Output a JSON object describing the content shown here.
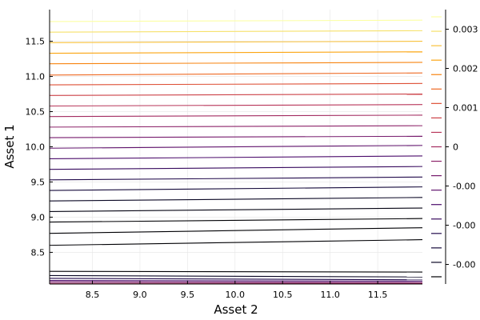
{
  "chart_data": {
    "type": "contour",
    "xlabel": "Asset 2",
    "ylabel": "Asset 1",
    "xlim": [
      8.05,
      11.97
    ],
    "ylim": [
      8.05,
      11.95
    ],
    "xticks": [
      "8.5",
      "9.0",
      "9.5",
      "10.0",
      "10.5",
      "11.0",
      "11.5"
    ],
    "yticks": [
      "8.5",
      "9.0",
      "9.5",
      "10.0",
      "10.5",
      "11.0",
      "11.5"
    ],
    "grid": true,
    "colormap": "inferno",
    "colorbar": {
      "range": [
        -0.0035,
        0.0035
      ],
      "tick_labels": [
        "0.003",
        "0.002",
        "0.001",
        "0",
        "-0.00",
        "-0.00",
        "-0.00"
      ],
      "tick_values": [
        0.003,
        0.002,
        0.001,
        0.0,
        -0.001,
        -0.002,
        -0.003
      ]
    },
    "contour_levels": [
      {
        "y_left": 11.78,
        "y_right": 11.8,
        "color": "#fcffa4"
      },
      {
        "y_left": 11.63,
        "y_right": 11.65,
        "color": "#f6e16a"
      },
      {
        "y_left": 11.48,
        "y_right": 11.5,
        "color": "#f9c23c"
      },
      {
        "y_left": 11.33,
        "y_right": 11.35,
        "color": "#fba512"
      },
      {
        "y_left": 11.18,
        "y_right": 11.2,
        "color": "#f78410"
      },
      {
        "y_left": 11.02,
        "y_right": 11.05,
        "color": "#ee6a24"
      },
      {
        "y_left": 10.88,
        "y_right": 10.9,
        "color": "#de5036"
      },
      {
        "y_left": 10.73,
        "y_right": 10.75,
        "color": "#cc4248"
      },
      {
        "y_left": 10.58,
        "y_right": 10.6,
        "color": "#b8365a"
      },
      {
        "y_left": 10.43,
        "y_right": 10.45,
        "color": "#a32c61"
      },
      {
        "y_left": 10.28,
        "y_right": 10.3,
        "color": "#8c2369"
      },
      {
        "y_left": 10.13,
        "y_right": 10.15,
        "color": "#761b6d"
      },
      {
        "y_left": 9.98,
        "y_right": 10.02,
        "color": "#62146e"
      },
      {
        "y_left": 9.83,
        "y_right": 9.87,
        "color": "#4b0c6b"
      },
      {
        "y_left": 9.68,
        "y_right": 9.72,
        "color": "#370a5e"
      },
      {
        "y_left": 9.53,
        "y_right": 9.57,
        "color": "#220b4c"
      },
      {
        "y_left": 9.38,
        "y_right": 9.43,
        "color": "#14093a"
      },
      {
        "y_left": 9.23,
        "y_right": 9.28,
        "color": "#0a0724"
      },
      {
        "y_left": 9.08,
        "y_right": 9.13,
        "color": "#040312"
      },
      {
        "y_left": 8.93,
        "y_right": 8.98,
        "color": "#000004"
      },
      {
        "y_left": 8.77,
        "y_right": 8.85,
        "color": "#000004"
      },
      {
        "y_left": 8.6,
        "y_right": 8.68,
        "color": "#000004"
      },
      {
        "y_left": 8.23,
        "y_right": 8.22,
        "color": "#000004"
      },
      {
        "y_left": 8.17,
        "y_right": 8.15,
        "color": "#0a0724"
      },
      {
        "y_left": 8.13,
        "y_right": 8.11,
        "color": "#220b4c"
      },
      {
        "y_left": 8.1,
        "y_right": 8.09,
        "color": "#4b0c6b"
      },
      {
        "y_left": 8.08,
        "y_right": 8.07,
        "color": "#761b6d"
      },
      {
        "y_left": 8.06,
        "y_right": 8.06,
        "color": "#a32c61"
      }
    ],
    "colorbar_level_colors": [
      "#000004",
      "#0a0724",
      "#14093a",
      "#220b4c",
      "#370a5e",
      "#4b0c6b",
      "#62146e",
      "#761b6d",
      "#8c2369",
      "#a32c61",
      "#b8365a",
      "#cc4248",
      "#de5036",
      "#ee6a24",
      "#f78410",
      "#fba512",
      "#f9c23c",
      "#f6e16a",
      "#fcffa4"
    ]
  }
}
